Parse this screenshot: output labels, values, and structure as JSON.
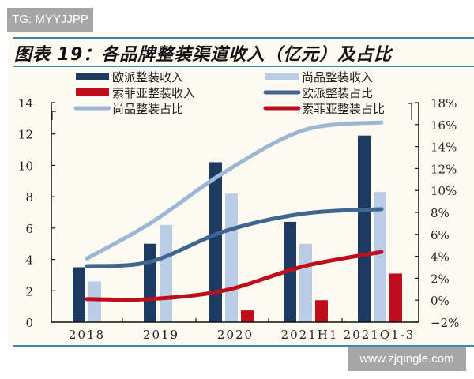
{
  "watermarks": {
    "top": "TG: MYYJJPP",
    "bottom": "www.zjqingle.com"
  },
  "header": {
    "title": "图表 19：各品牌整装渠道收入（亿元）及占比"
  },
  "colors": {
    "oupai_bar": "#1d3a63",
    "shangpin_bar": "#b9cde6",
    "sofia_bar": "#c00d1e",
    "oupai_line": "#3f6591",
    "shangpin_line": "#9db6d6",
    "sofia_line": "#c00d1e",
    "rule": "#3a87b5",
    "panel": "#fdfbf1"
  },
  "legend": {
    "items": [
      {
        "label": "欧派整装收入",
        "type": "bar",
        "color": "#1d3a63"
      },
      {
        "label": "尚品整装收入",
        "type": "bar",
        "color": "#b9cde6"
      },
      {
        "label": "索菲亚整装收入",
        "type": "bar",
        "color": "#c00d1e"
      },
      {
        "label": "欧派整装占比",
        "type": "line",
        "color": "#3f6591"
      },
      {
        "label": "尚品整装占比",
        "type": "line",
        "color": "#9db6d6"
      },
      {
        "label": "索菲亚整装占比",
        "type": "line",
        "color": "#c00d1e"
      }
    ]
  },
  "axes": {
    "left_ticks": [
      "0",
      "2",
      "4",
      "6",
      "8",
      "10",
      "12",
      "14"
    ],
    "right_ticks": [
      "-2%",
      "0%",
      "2%",
      "4%",
      "6%",
      "8%",
      "10%",
      "12%",
      "14%",
      "16%",
      "18%"
    ],
    "x_ticks": [
      "2018",
      "2019",
      "2020",
      "2021H1",
      "2021Q1-3"
    ]
  },
  "chart_data": {
    "type": "bar+line",
    "title": "图表 19：各品牌整装渠道收入（亿元）及占比",
    "categories": [
      "2018",
      "2019",
      "2020",
      "2021H1",
      "2021Q1-3"
    ],
    "xlabel": "",
    "ylabel": "收入（亿元）",
    "ylim": [
      0,
      14
    ],
    "y2label": "占比",
    "y2lim": [
      -2,
      18
    ],
    "legend_position": "top",
    "grid": false,
    "series": [
      {
        "name": "欧派整装收入",
        "type": "bar",
        "axis": "left",
        "values": [
          3.5,
          5.0,
          10.2,
          6.4,
          11.9
        ]
      },
      {
        "name": "尚品整装收入",
        "type": "bar",
        "axis": "left",
        "values": [
          2.6,
          6.2,
          8.2,
          5.0,
          8.3
        ]
      },
      {
        "name": "索菲亚整装收入",
        "type": "bar",
        "axis": "left",
        "values": [
          null,
          null,
          0.75,
          1.4,
          3.1
        ]
      },
      {
        "name": "欧派整装占比",
        "type": "line",
        "axis": "right",
        "unit": "%",
        "values": [
          3.1,
          3.5,
          6.3,
          7.9,
          8.3
        ]
      },
      {
        "name": "尚品整装占比",
        "type": "line",
        "axis": "right",
        "unit": "%",
        "values": [
          3.8,
          7.0,
          11.7,
          15.5,
          16.2
        ]
      },
      {
        "name": "索菲亚整装占比",
        "type": "line",
        "axis": "right",
        "unit": "%",
        "values": [
          0.1,
          0.1,
          0.9,
          3.1,
          4.4
        ]
      }
    ]
  }
}
